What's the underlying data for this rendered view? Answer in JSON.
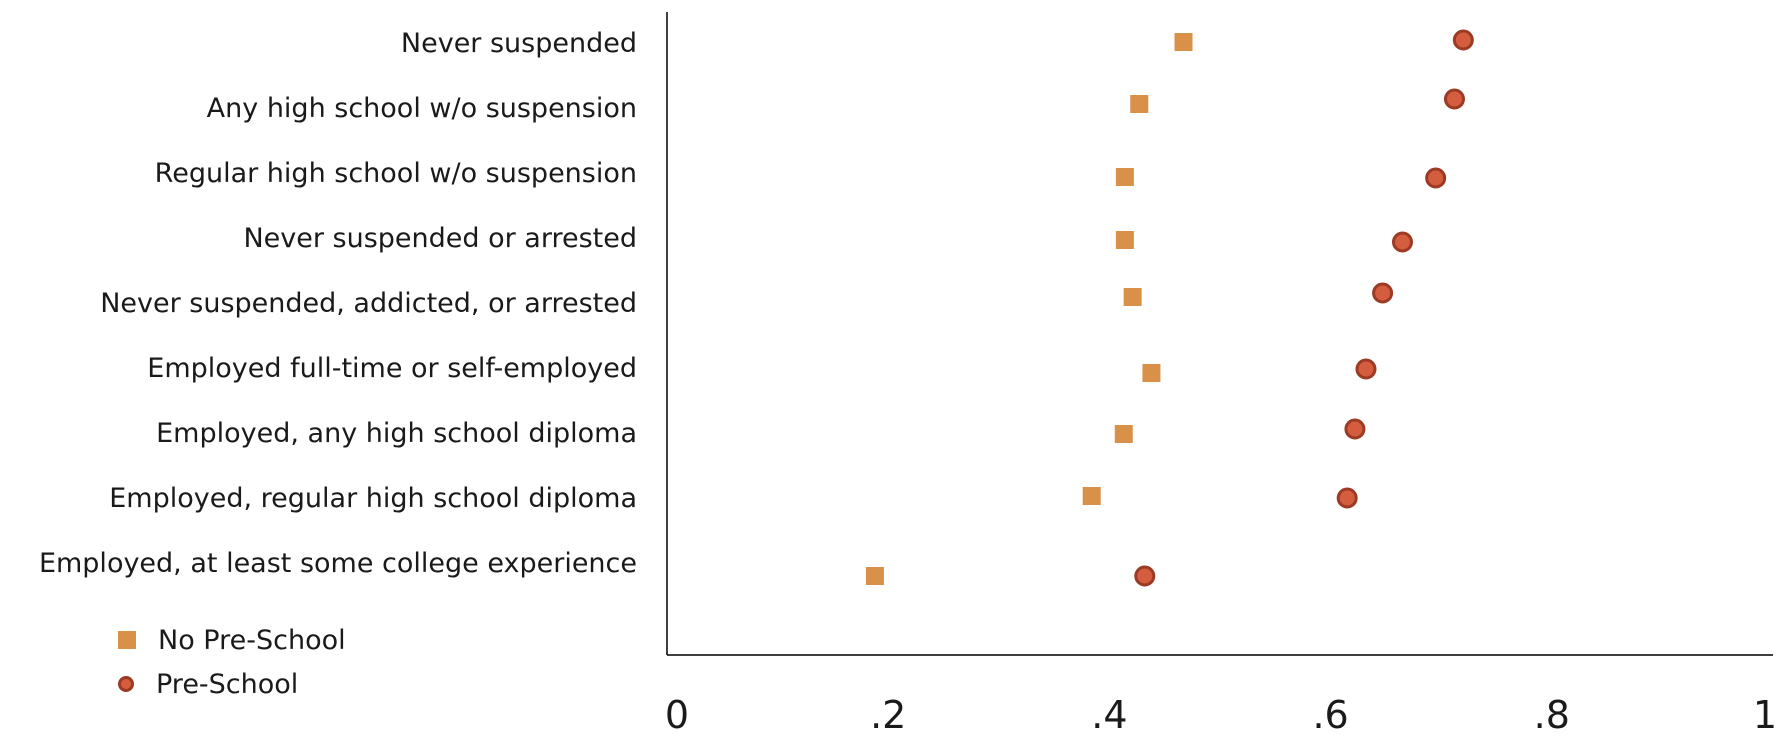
{
  "chart_data": {
    "type": "scatter",
    "title": "",
    "xlabel": "",
    "ylabel": "",
    "xlim": [
      0,
      1
    ],
    "x_ticks": [
      "0",
      ".2",
      ".4",
      ".6",
      ".8",
      "1"
    ],
    "x_tick_values": [
      0,
      0.2,
      0.4,
      0.6,
      0.8,
      1
    ],
    "grid": false,
    "legend_position": "bottom-left",
    "categories": [
      "Never suspended",
      "Any high school w/o suspension",
      "Regular high school w/o suspension",
      "Never suspended or arrested",
      "Never suspended, addicted, or arrested",
      "Employed full-time or self-employed",
      "Employed, any high school diploma",
      "Employed, regular high school diploma",
      "Employed, at least some college experience"
    ],
    "series": [
      {
        "name": "No Pre-School",
        "marker": "square",
        "color": "#D9914A",
        "values": [
          0.467,
          0.427,
          0.414,
          0.414,
          0.421,
          0.438,
          0.413,
          0.384,
          0.188
        ]
      },
      {
        "name": "Pre-School",
        "marker": "circle",
        "color": "#D45D3F",
        "stroke": "#9C3A24",
        "values": [
          0.72,
          0.712,
          0.695,
          0.665,
          0.647,
          0.632,
          0.622,
          0.615,
          0.432
        ]
      }
    ]
  }
}
